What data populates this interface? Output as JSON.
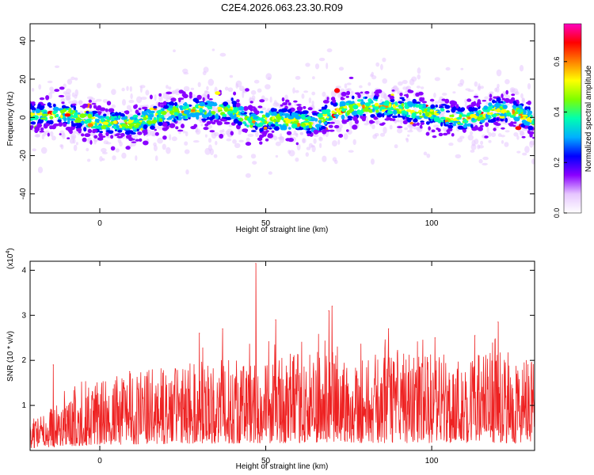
{
  "title": "C2E4.2026.063.23.30.R09",
  "chart_data": [
    {
      "type": "heatmap",
      "xlabel": "Height of straight line (km)",
      "ylabel": "Frequency (Hz)",
      "xlim": [
        -21,
        131
      ],
      "ylim": [
        -50,
        49
      ],
      "xticks": [
        0,
        50,
        100
      ],
      "yticks": [
        -40,
        -20,
        0,
        20,
        40
      ],
      "centerline": {
        "x": [
          -20,
          -10,
          0,
          10,
          20,
          30,
          40,
          45,
          50,
          60,
          65,
          70,
          80,
          90,
          100,
          110,
          120,
          125,
          130
        ],
        "y": [
          1,
          2,
          -3,
          -3,
          2,
          4,
          4,
          -3,
          -1,
          -2,
          -3,
          3,
          6,
          5,
          2,
          -1,
          4,
          3,
          -1
        ]
      },
      "band_halfwidth_hz": 8,
      "colorbar": {
        "label": "Normalized spectral amplitude",
        "range": [
          0.0,
          0.75
        ],
        "ticks": [
          "0.0",
          "0.2",
          "0.4",
          "0.6"
        ],
        "tick_values": [
          0.0,
          0.2,
          0.4,
          0.6
        ],
        "colors": [
          "#ffffff",
          "#e6c6ff",
          "#8a00ff",
          "#0000ff",
          "#00b0ff",
          "#00ffb0",
          "#7dff00",
          "#ffff00",
          "#ff8000",
          "#ff0000",
          "#ff00c0"
        ]
      }
    },
    {
      "type": "line",
      "xlabel": "Height of straight line (km)",
      "ylabel": "SNR (10 * v/v)",
      "y_multiplier_label": "(x10",
      "y_multiplier_exp": "4",
      "y_multiplier_close": ")",
      "xlim": [
        -21,
        131
      ],
      "ylim": [
        0,
        4.2
      ],
      "xticks": [
        0,
        50,
        100
      ],
      "yticks": [
        1,
        2,
        3,
        4
      ],
      "color": "#ee2222",
      "envelope": {
        "x": [
          -21,
          -15,
          -5,
          0,
          10,
          20,
          30,
          40,
          50,
          60,
          70,
          80,
          90,
          100,
          110,
          120,
          125,
          131
        ],
        "y": [
          0.3,
          0.5,
          0.7,
          0.8,
          0.9,
          0.95,
          1.0,
          1.05,
          1.05,
          1.1,
          1.15,
          1.1,
          1.1,
          1.1,
          1.1,
          1.15,
          1.1,
          1.0
        ]
      },
      "peaks": [
        {
          "x": -14,
          "y": 1.9
        },
        {
          "x": 9,
          "y": 1.75
        },
        {
          "x": 30,
          "y": 2.6
        },
        {
          "x": 37,
          "y": 2.7
        },
        {
          "x": 47,
          "y": 4.15
        },
        {
          "x": 53,
          "y": 2.9
        },
        {
          "x": 69,
          "y": 3.1
        },
        {
          "x": 70,
          "y": 3.2
        },
        {
          "x": 87,
          "y": 2.7
        },
        {
          "x": 101,
          "y": 2.5
        },
        {
          "x": 113,
          "y": 2.55
        },
        {
          "x": 120,
          "y": 2.85
        },
        {
          "x": 129,
          "y": 1.9
        }
      ]
    }
  ]
}
